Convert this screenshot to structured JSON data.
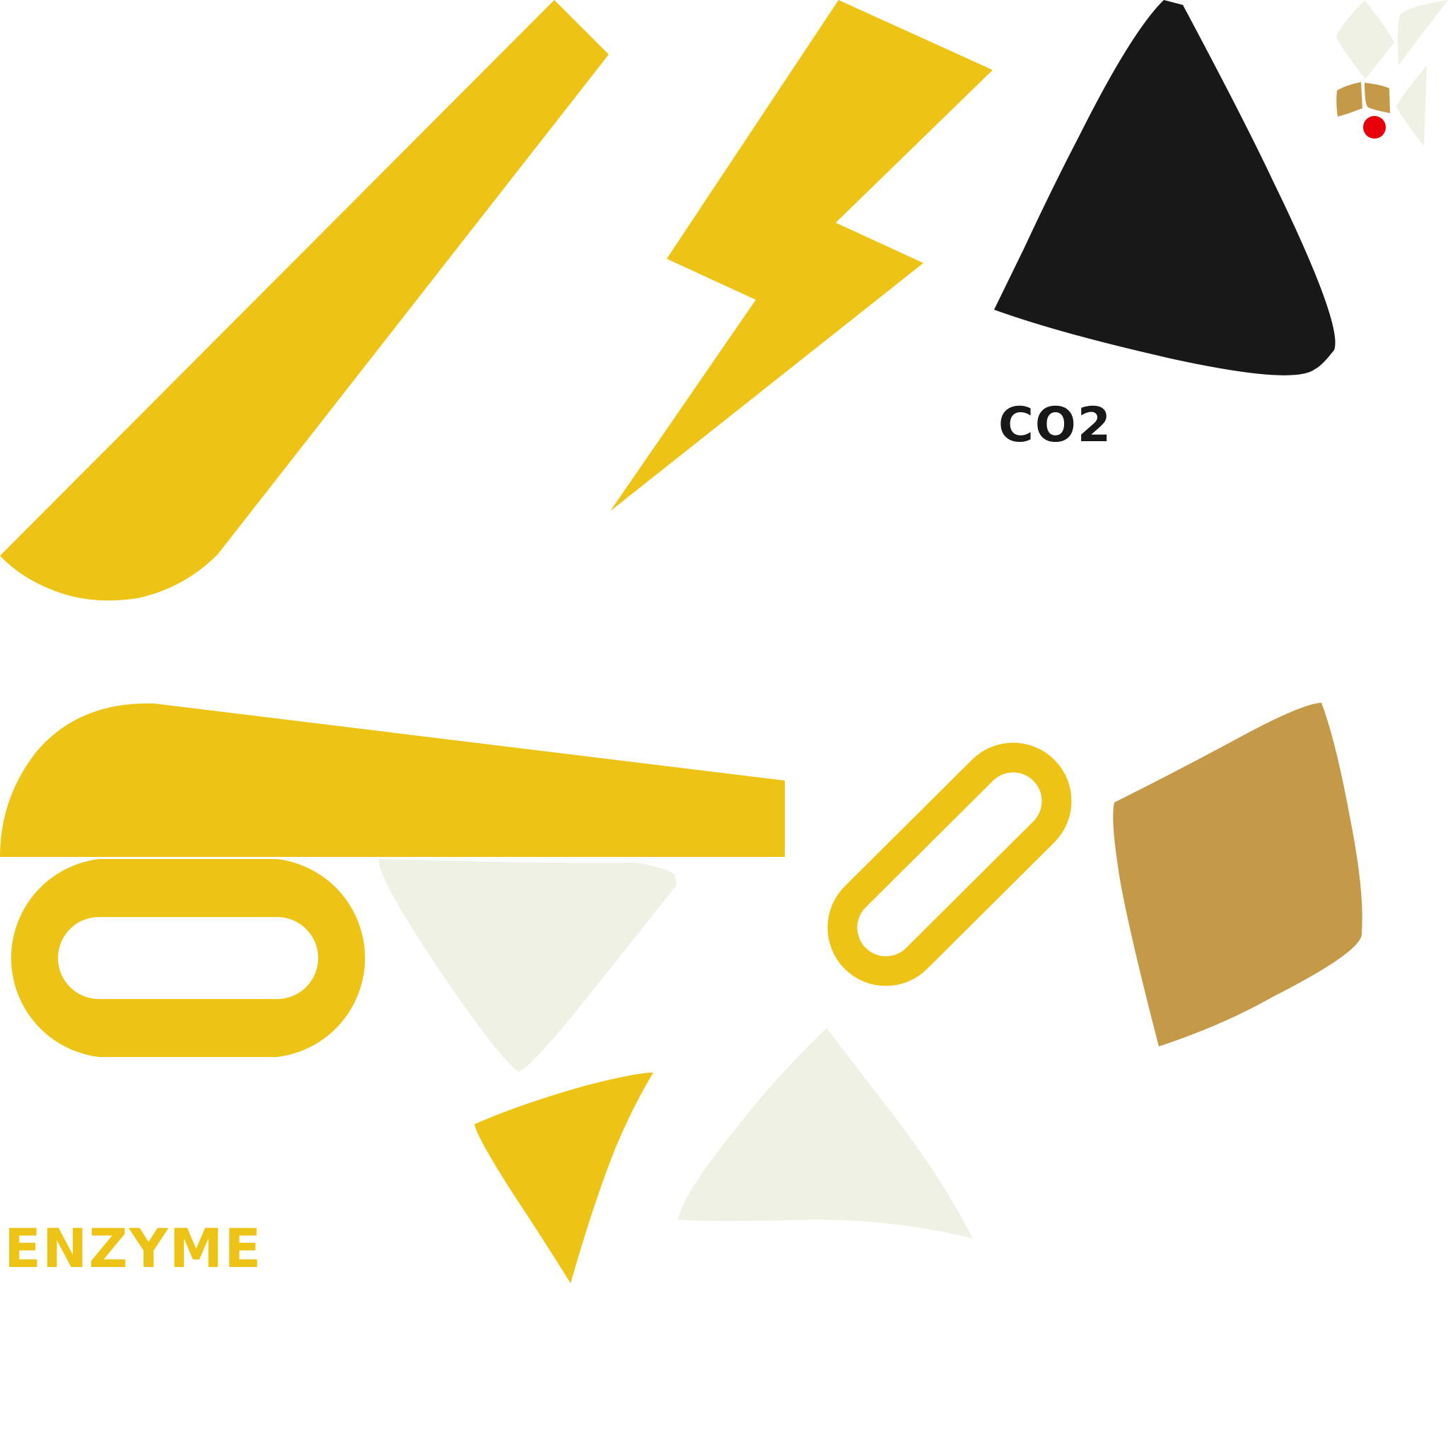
{
  "colors": {
    "yellow": "#EDC316",
    "black": "#181818",
    "tan": "#C49A48",
    "cream": "#EFF1E4",
    "red": "#E8000B"
  },
  "labels": {
    "co2": "CO2",
    "enzyme": "ENZYME"
  },
  "pieces": [
    {
      "name": "yellow-blade-shape",
      "fill": "yellow"
    },
    {
      "name": "lightning-bolt-icon",
      "fill": "yellow"
    },
    {
      "name": "black-triangle-shape",
      "fill": "black"
    },
    {
      "name": "small-cream-leaf-top",
      "fill": "cream"
    },
    {
      "name": "small-cream-leaf-right",
      "fill": "cream"
    },
    {
      "name": "small-cream-leaf-lower",
      "fill": "cream"
    },
    {
      "name": "small-tan-piece-left",
      "fill": "tan"
    },
    {
      "name": "small-tan-piece-right",
      "fill": "tan"
    },
    {
      "name": "red-dot",
      "fill": "red"
    },
    {
      "name": "yellow-wedge-shape",
      "fill": "yellow"
    },
    {
      "name": "yellow-horizontal-ring",
      "fill": "yellow"
    },
    {
      "name": "cream-triangle-top",
      "fill": "cream"
    },
    {
      "name": "yellow-diagonal-ring",
      "fill": "yellow"
    },
    {
      "name": "tan-quad-shape",
      "fill": "tan"
    },
    {
      "name": "yellow-small-triangle",
      "fill": "yellow"
    },
    {
      "name": "cream-triangle-bottom",
      "fill": "cream"
    }
  ]
}
